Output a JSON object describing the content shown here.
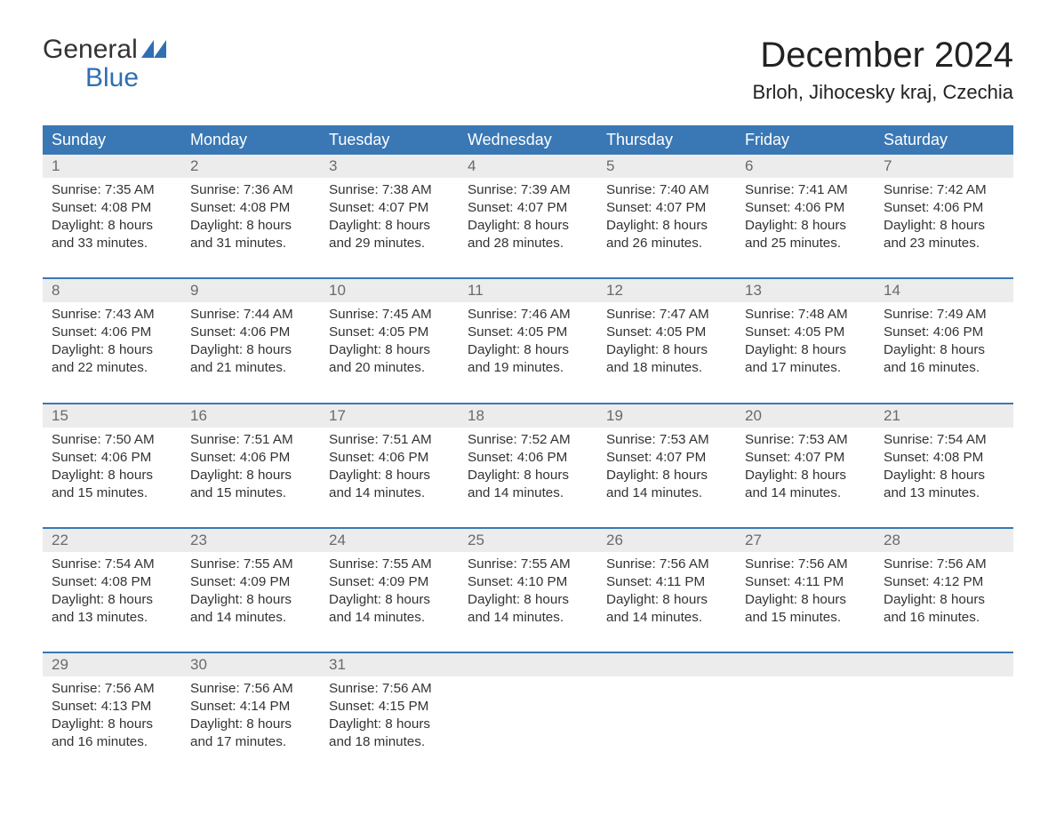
{
  "brand": {
    "line1": "General",
    "line2": "Blue",
    "logo_color": "#2f6fb3"
  },
  "title": "December 2024",
  "location": "Brloh, Jihocesky kraj, Czechia",
  "colors": {
    "header_bg": "#3a78b5",
    "header_text": "#ffffff",
    "daynum_bg": "#ececec",
    "daynum_text": "#6a6a6a",
    "body_text": "#333333",
    "page_bg": "#ffffff",
    "separator": "#3a78b5"
  },
  "typography": {
    "title_fontsize": 40,
    "location_fontsize": 22,
    "dow_fontsize": 18,
    "daynum_fontsize": 17,
    "cell_fontsize": 15.2,
    "logo_fontsize": 30
  },
  "layout": {
    "columns": 7,
    "weeks": 5
  },
  "day_names": [
    "Sunday",
    "Monday",
    "Tuesday",
    "Wednesday",
    "Thursday",
    "Friday",
    "Saturday"
  ],
  "labels": {
    "sunrise": "Sunrise",
    "sunset": "Sunset",
    "daylight": "Daylight"
  },
  "weeks": [
    {
      "days": [
        {
          "n": "1",
          "sunrise": "7:35 AM",
          "sunset": "4:08 PM",
          "dl1": "8 hours",
          "dl2": "and 33 minutes."
        },
        {
          "n": "2",
          "sunrise": "7:36 AM",
          "sunset": "4:08 PM",
          "dl1": "8 hours",
          "dl2": "and 31 minutes."
        },
        {
          "n": "3",
          "sunrise": "7:38 AM",
          "sunset": "4:07 PM",
          "dl1": "8 hours",
          "dl2": "and 29 minutes."
        },
        {
          "n": "4",
          "sunrise": "7:39 AM",
          "sunset": "4:07 PM",
          "dl1": "8 hours",
          "dl2": "and 28 minutes."
        },
        {
          "n": "5",
          "sunrise": "7:40 AM",
          "sunset": "4:07 PM",
          "dl1": "8 hours",
          "dl2": "and 26 minutes."
        },
        {
          "n": "6",
          "sunrise": "7:41 AM",
          "sunset": "4:06 PM",
          "dl1": "8 hours",
          "dl2": "and 25 minutes."
        },
        {
          "n": "7",
          "sunrise": "7:42 AM",
          "sunset": "4:06 PM",
          "dl1": "8 hours",
          "dl2": "and 23 minutes."
        }
      ]
    },
    {
      "days": [
        {
          "n": "8",
          "sunrise": "7:43 AM",
          "sunset": "4:06 PM",
          "dl1": "8 hours",
          "dl2": "and 22 minutes."
        },
        {
          "n": "9",
          "sunrise": "7:44 AM",
          "sunset": "4:06 PM",
          "dl1": "8 hours",
          "dl2": "and 21 minutes."
        },
        {
          "n": "10",
          "sunrise": "7:45 AM",
          "sunset": "4:05 PM",
          "dl1": "8 hours",
          "dl2": "and 20 minutes."
        },
        {
          "n": "11",
          "sunrise": "7:46 AM",
          "sunset": "4:05 PM",
          "dl1": "8 hours",
          "dl2": "and 19 minutes."
        },
        {
          "n": "12",
          "sunrise": "7:47 AM",
          "sunset": "4:05 PM",
          "dl1": "8 hours",
          "dl2": "and 18 minutes."
        },
        {
          "n": "13",
          "sunrise": "7:48 AM",
          "sunset": "4:05 PM",
          "dl1": "8 hours",
          "dl2": "and 17 minutes."
        },
        {
          "n": "14",
          "sunrise": "7:49 AM",
          "sunset": "4:06 PM",
          "dl1": "8 hours",
          "dl2": "and 16 minutes."
        }
      ]
    },
    {
      "days": [
        {
          "n": "15",
          "sunrise": "7:50 AM",
          "sunset": "4:06 PM",
          "dl1": "8 hours",
          "dl2": "and 15 minutes."
        },
        {
          "n": "16",
          "sunrise": "7:51 AM",
          "sunset": "4:06 PM",
          "dl1": "8 hours",
          "dl2": "and 15 minutes."
        },
        {
          "n": "17",
          "sunrise": "7:51 AM",
          "sunset": "4:06 PM",
          "dl1": "8 hours",
          "dl2": "and 14 minutes."
        },
        {
          "n": "18",
          "sunrise": "7:52 AM",
          "sunset": "4:06 PM",
          "dl1": "8 hours",
          "dl2": "and 14 minutes."
        },
        {
          "n": "19",
          "sunrise": "7:53 AM",
          "sunset": "4:07 PM",
          "dl1": "8 hours",
          "dl2": "and 14 minutes."
        },
        {
          "n": "20",
          "sunrise": "7:53 AM",
          "sunset": "4:07 PM",
          "dl1": "8 hours",
          "dl2": "and 14 minutes."
        },
        {
          "n": "21",
          "sunrise": "7:54 AM",
          "sunset": "4:08 PM",
          "dl1": "8 hours",
          "dl2": "and 13 minutes."
        }
      ]
    },
    {
      "days": [
        {
          "n": "22",
          "sunrise": "7:54 AM",
          "sunset": "4:08 PM",
          "dl1": "8 hours",
          "dl2": "and 13 minutes."
        },
        {
          "n": "23",
          "sunrise": "7:55 AM",
          "sunset": "4:09 PM",
          "dl1": "8 hours",
          "dl2": "and 14 minutes."
        },
        {
          "n": "24",
          "sunrise": "7:55 AM",
          "sunset": "4:09 PM",
          "dl1": "8 hours",
          "dl2": "and 14 minutes."
        },
        {
          "n": "25",
          "sunrise": "7:55 AM",
          "sunset": "4:10 PM",
          "dl1": "8 hours",
          "dl2": "and 14 minutes."
        },
        {
          "n": "26",
          "sunrise": "7:56 AM",
          "sunset": "4:11 PM",
          "dl1": "8 hours",
          "dl2": "and 14 minutes."
        },
        {
          "n": "27",
          "sunrise": "7:56 AM",
          "sunset": "4:11 PM",
          "dl1": "8 hours",
          "dl2": "and 15 minutes."
        },
        {
          "n": "28",
          "sunrise": "7:56 AM",
          "sunset": "4:12 PM",
          "dl1": "8 hours",
          "dl2": "and 16 minutes."
        }
      ]
    },
    {
      "days": [
        {
          "n": "29",
          "sunrise": "7:56 AM",
          "sunset": "4:13 PM",
          "dl1": "8 hours",
          "dl2": "and 16 minutes."
        },
        {
          "n": "30",
          "sunrise": "7:56 AM",
          "sunset": "4:14 PM",
          "dl1": "8 hours",
          "dl2": "and 17 minutes."
        },
        {
          "n": "31",
          "sunrise": "7:56 AM",
          "sunset": "4:15 PM",
          "dl1": "8 hours",
          "dl2": "and 18 minutes."
        },
        {
          "empty": true
        },
        {
          "empty": true
        },
        {
          "empty": true
        },
        {
          "empty": true
        }
      ]
    }
  ]
}
